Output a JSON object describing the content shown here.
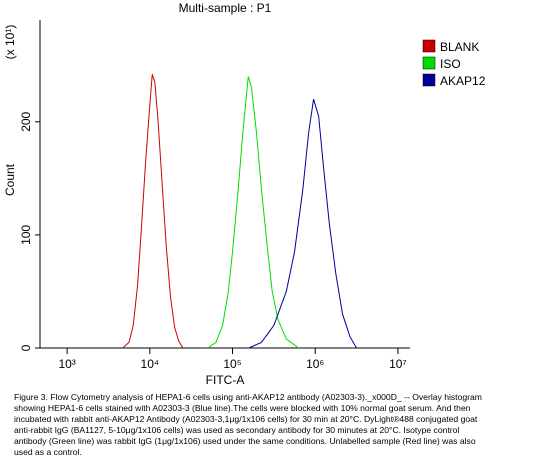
{
  "chart_data": {
    "type": "line",
    "title": "Multi-sample : P1",
    "x_label": "FITC-A",
    "y_label": "Count",
    "y_multiplier": "(x 10¹)",
    "x_scale": "log",
    "legend": "right",
    "grid": false,
    "xlim": [
      470,
      14000000
    ],
    "xticks": [
      {
        "value": 1000,
        "label": "10³"
      },
      {
        "value": 10000,
        "label": "10⁴"
      },
      {
        "value": 100000,
        "label": "10⁵"
      },
      {
        "value": 1000000,
        "label": "10⁶"
      },
      {
        "value": 10000000,
        "label": "10⁷"
      }
    ],
    "ylim": [
      0,
      290
    ],
    "yticks": [
      0,
      100,
      200
    ],
    "series": [
      {
        "name": "BLANK",
        "color": "#cc0000",
        "x": [
          4700,
          5600,
          6300,
          7100,
          7900,
          8900,
          10000,
          10700,
          11500,
          12600,
          14100,
          15800,
          17800,
          20000,
          22400,
          25100
        ],
        "values": [
          0,
          5,
          20,
          55,
          105,
          165,
          215,
          242,
          235,
          200,
          145,
          90,
          45,
          18,
          6,
          0
        ]
      },
      {
        "name": "ISO",
        "color": "#00dd00",
        "x": [
          50100,
          63100,
          75900,
          89100,
          100000,
          117000,
          135000,
          155000,
          170000,
          195000,
          224000,
          263000,
          302000,
          355000,
          447000,
          631000
        ],
        "values": [
          0,
          5,
          20,
          50,
          85,
          140,
          195,
          240,
          230,
          190,
          140,
          90,
          50,
          25,
          8,
          0
        ]
      },
      {
        "name": "AKAP12",
        "color": "#000099",
        "x": [
          158000,
          224000,
          316000,
          447000,
          562000,
          708000,
          832000,
          955000,
          1100000,
          1260000,
          1480000,
          1780000,
          2140000,
          2630000,
          3160000
        ],
        "values": [
          0,
          5,
          20,
          50,
          85,
          140,
          190,
          220,
          205,
          160,
          110,
          65,
          30,
          10,
          0
        ]
      }
    ],
    "caption": [
      "Figure 3. Flow Cytometry analysis of HEPA1-6 cells using anti-AKAP12 antibody (A02303-3)._x000D_ -- Overlay histogram",
      "showing HEPA1-6 cells stained with A02303-3 (Blue line).The cells were blocked with 10% normal goat serum. And then",
      "incubated with rabbit anti-AKAP12 Antibody (A02303-3,1μg/1x106 cells) for 30 min at 20°C. DyLight®488 conjugated goat",
      "anti-rabbit IgG (BA1127, 5-10μg/1x106 cells) was used as secondary antibody for 30 minutes at 20°C. Isotype control",
      "antibody (Green line) was rabbit IgG (1μg/1x106) used under the same conditions. Unlabelled sample (Red line) was also",
      "used as a control."
    ]
  }
}
